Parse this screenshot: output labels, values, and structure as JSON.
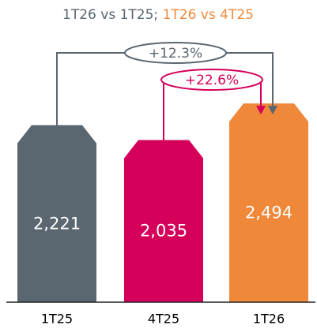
{
  "chart_data": {
    "type": "bar",
    "title": [
      "1T26 vs 1T25;",
      "1T26 vs 4T25"
    ],
    "title_colors": [
      "#5a6670",
      "#f0883a"
    ],
    "categories": [
      "1T25",
      "4T25",
      "1T26"
    ],
    "values": [
      2221,
      2035,
      2494
    ],
    "value_labels": [
      "2,221",
      "2,035",
      "2,494"
    ],
    "colors": [
      "#5a6670",
      "#d4005a",
      "#f0883a"
    ],
    "annotations": [
      {
        "text": "+12.3%",
        "from": 0,
        "to": 2,
        "color": "#5a6670"
      },
      {
        "text": "+22.6%",
        "from": 1,
        "to": 2,
        "color": "#d4005a"
      }
    ]
  }
}
